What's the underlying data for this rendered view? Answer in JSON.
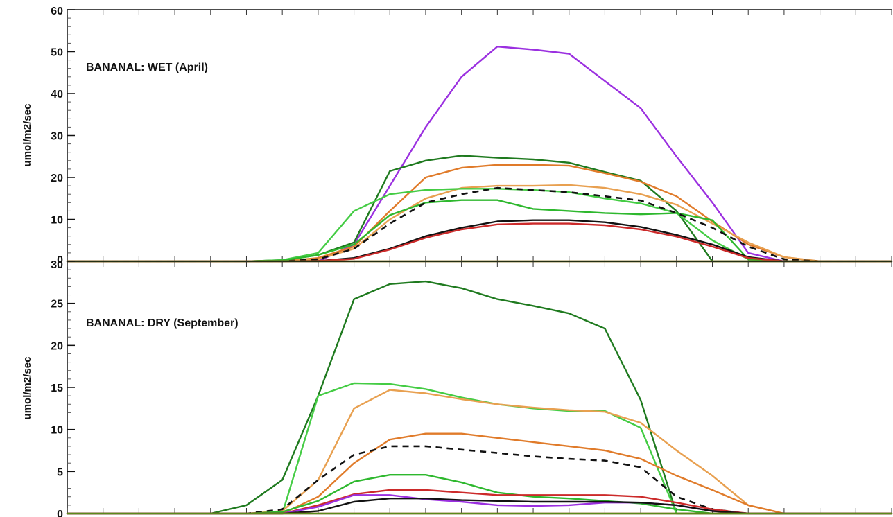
{
  "chart_data": [
    {
      "type": "line",
      "title": "BANANAL: WET (April)",
      "ylabel": "umol/m2/sec",
      "ylim": [
        0,
        60
      ],
      "yticks": [
        0,
        10,
        20,
        30,
        40,
        50,
        60
      ],
      "xlim": [
        0,
        23
      ],
      "x": [
        0,
        1,
        2,
        3,
        4,
        5,
        6,
        7,
        8,
        9,
        10,
        11,
        12,
        13,
        14,
        15,
        16,
        17,
        18,
        19,
        20,
        21,
        22,
        23
      ],
      "grid": false,
      "series": [
        {
          "color": "#9b30e0",
          "dashed": false,
          "values": [
            0,
            0,
            0,
            0,
            0,
            0,
            0,
            0,
            4,
            18,
            32,
            44,
            51.2,
            50.5,
            49.5,
            43,
            36.5,
            25,
            14,
            2,
            0,
            0,
            0,
            0
          ]
        },
        {
          "color": "#1f7a1f",
          "dashed": false,
          "values": [
            0,
            0,
            0,
            0,
            0,
            0,
            0.3,
            1.5,
            4.5,
            21.5,
            24,
            25.2,
            24.7,
            24.3,
            23.5,
            21.3,
            19.2,
            12,
            0,
            0,
            0,
            0,
            0,
            0
          ]
        },
        {
          "color": "#e07b2a",
          "dashed": false,
          "values": [
            0,
            0,
            0,
            0,
            0,
            0,
            0,
            0.8,
            3.5,
            12,
            20,
            22.3,
            23,
            23,
            22.8,
            21,
            19,
            15.5,
            9.5,
            4,
            1,
            0,
            0,
            0
          ]
        },
        {
          "color": "#e8a050",
          "dashed": false,
          "values": [
            0,
            0,
            0,
            0,
            0,
            0,
            0,
            0.5,
            3,
            10,
            15,
            17.5,
            18,
            18,
            18.2,
            17.5,
            16,
            13.5,
            9,
            4.5,
            1,
            0,
            0,
            0
          ]
        },
        {
          "color": "#44cc44",
          "dashed": false,
          "values": [
            0,
            0,
            0,
            0,
            0,
            0,
            0.3,
            2,
            12,
            16,
            17,
            17.3,
            17.3,
            17,
            16.5,
            15,
            13.8,
            11.5,
            5,
            0.5,
            0,
            0,
            0,
            0
          ]
        },
        {
          "color": "#2eb82e",
          "dashed": false,
          "values": [
            0,
            0,
            0,
            0,
            0,
            0,
            0.2,
            1.5,
            4,
            11,
            14,
            14.6,
            14.6,
            12.5,
            12,
            11.5,
            11.2,
            11.5,
            9.8,
            0.5,
            0,
            0,
            0,
            0
          ]
        },
        {
          "color": "#111111",
          "dashed": true,
          "values": [
            0,
            0,
            0,
            0,
            0,
            0,
            0,
            0.5,
            3,
            9,
            14,
            16,
            17.5,
            17,
            16.5,
            15.5,
            14.5,
            11.5,
            8,
            3.5,
            0.5,
            0,
            0,
            0
          ]
        },
        {
          "color": "#111111",
          "dashed": false,
          "values": [
            0,
            0,
            0,
            0,
            0,
            0,
            0,
            0.1,
            0.8,
            3,
            6,
            8,
            9.5,
            9.8,
            9.8,
            9.3,
            8.2,
            6.3,
            4,
            1,
            0,
            0,
            0,
            0
          ]
        },
        {
          "color": "#cc2a2a",
          "dashed": false,
          "values": [
            0,
            0,
            0,
            0,
            0,
            0,
            0,
            0.1,
            0.6,
            2.8,
            5.6,
            7.6,
            8.8,
            9,
            9,
            8.6,
            7.6,
            5.9,
            3.5,
            0.8,
            0,
            0,
            0,
            0
          ]
        },
        {
          "color": "#cc2a2a",
          "dashed": false,
          "values": [
            0,
            0,
            0,
            0,
            0,
            0,
            0,
            0,
            0,
            0,
            0,
            0,
            0,
            0,
            0,
            0,
            0,
            0,
            0,
            0,
            0,
            0,
            0,
            0
          ]
        },
        {
          "color": "#5a8a1a",
          "dashed": false,
          "values": [
            0,
            0,
            0,
            0,
            0,
            0,
            0,
            0,
            0,
            0,
            0,
            0,
            0,
            0,
            0,
            0,
            0,
            0,
            0,
            0,
            0,
            0,
            0,
            0
          ]
        }
      ]
    },
    {
      "type": "line",
      "title": "BANANAL: DRY (September)",
      "ylabel": "umol/m2/sec",
      "ylim": [
        0,
        30
      ],
      "yticks": [
        0,
        5,
        10,
        15,
        20,
        25,
        30
      ],
      "xlim": [
        0,
        23
      ],
      "x": [
        0,
        1,
        2,
        3,
        4,
        5,
        6,
        7,
        8,
        9,
        10,
        11,
        12,
        13,
        14,
        15,
        16,
        17,
        18,
        19,
        20,
        21,
        22,
        23
      ],
      "grid": false,
      "series": [
        {
          "color": "#1f7a1f",
          "dashed": false,
          "values": [
            0,
            0,
            0,
            0,
            0,
            1,
            4,
            14,
            25.5,
            27.3,
            27.6,
            26.8,
            25.5,
            24.7,
            23.8,
            22,
            13.5,
            0,
            0,
            0,
            0,
            0,
            0,
            0
          ]
        },
        {
          "color": "#44cc44",
          "dashed": false,
          "values": [
            0,
            0,
            0,
            0,
            0,
            0,
            0,
            14,
            15.5,
            15.4,
            14.8,
            13.8,
            13,
            12.5,
            12.2,
            12.2,
            10.2,
            0,
            0,
            0,
            0,
            0,
            0,
            0
          ]
        },
        {
          "color": "#e8a050",
          "dashed": false,
          "values": [
            0,
            0,
            0,
            0,
            0,
            0,
            0.3,
            4,
            12.5,
            14.7,
            14.3,
            13.6,
            13,
            12.6,
            12.3,
            12.1,
            10.8,
            7.5,
            4.5,
            1,
            0,
            0,
            0,
            0
          ]
        },
        {
          "color": "#e07b2a",
          "dashed": false,
          "values": [
            0,
            0,
            0,
            0,
            0,
            0,
            0,
            2,
            6,
            8.8,
            9.5,
            9.5,
            9,
            8.5,
            8,
            7.5,
            6.5,
            4.5,
            2.8,
            1,
            0,
            0,
            0,
            0
          ]
        },
        {
          "color": "#111111",
          "dashed": true,
          "values": [
            0,
            0,
            0,
            0,
            0,
            0,
            0.5,
            4,
            7,
            8,
            8,
            7.6,
            7.2,
            6.8,
            6.5,
            6.3,
            5.5,
            2,
            0.5,
            0,
            0,
            0,
            0,
            0
          ]
        },
        {
          "color": "#2eb82e",
          "dashed": false,
          "values": [
            0,
            0,
            0,
            0,
            0,
            0,
            0.2,
            1.5,
            3.8,
            4.6,
            4.6,
            3.7,
            2.5,
            2,
            1.8,
            1.5,
            1.2,
            0.5,
            0,
            0,
            0,
            0,
            0,
            0
          ]
        },
        {
          "color": "#cc2a2a",
          "dashed": false,
          "values": [
            0,
            0,
            0,
            0,
            0,
            0,
            0,
            1,
            2.3,
            2.8,
            2.8,
            2.5,
            2.2,
            2.2,
            2.2,
            2.2,
            2,
            1.3,
            0.5,
            0,
            0,
            0,
            0,
            0
          ]
        },
        {
          "color": "#9b30e0",
          "dashed": false,
          "values": [
            0,
            0,
            0,
            0,
            0,
            0,
            0,
            0.8,
            2.2,
            2.2,
            1.7,
            1.4,
            1,
            0.9,
            1,
            1.3,
            1.3,
            1,
            0.3,
            0,
            0,
            0,
            0,
            0
          ]
        },
        {
          "color": "#111111",
          "dashed": false,
          "values": [
            0,
            0,
            0,
            0,
            0,
            0,
            0,
            0.3,
            1.4,
            1.8,
            1.8,
            1.6,
            1.5,
            1.4,
            1.4,
            1.4,
            1.3,
            1,
            0.3,
            0,
            0,
            0,
            0,
            0
          ]
        },
        {
          "color": "#cc2a2a",
          "dashed": false,
          "values": [
            0,
            0,
            0,
            0,
            0,
            0,
            0,
            0,
            0,
            0,
            0,
            0,
            0,
            0,
            0,
            0,
            0,
            0,
            0,
            0,
            0,
            0,
            0,
            0
          ]
        },
        {
          "color": "#5a8a1a",
          "dashed": false,
          "values": [
            0,
            0,
            0,
            0,
            0,
            0,
            0,
            0,
            0,
            0,
            0,
            0,
            0,
            0,
            0,
            0,
            0,
            0,
            0,
            0,
            0,
            0,
            0,
            0
          ]
        }
      ]
    }
  ]
}
